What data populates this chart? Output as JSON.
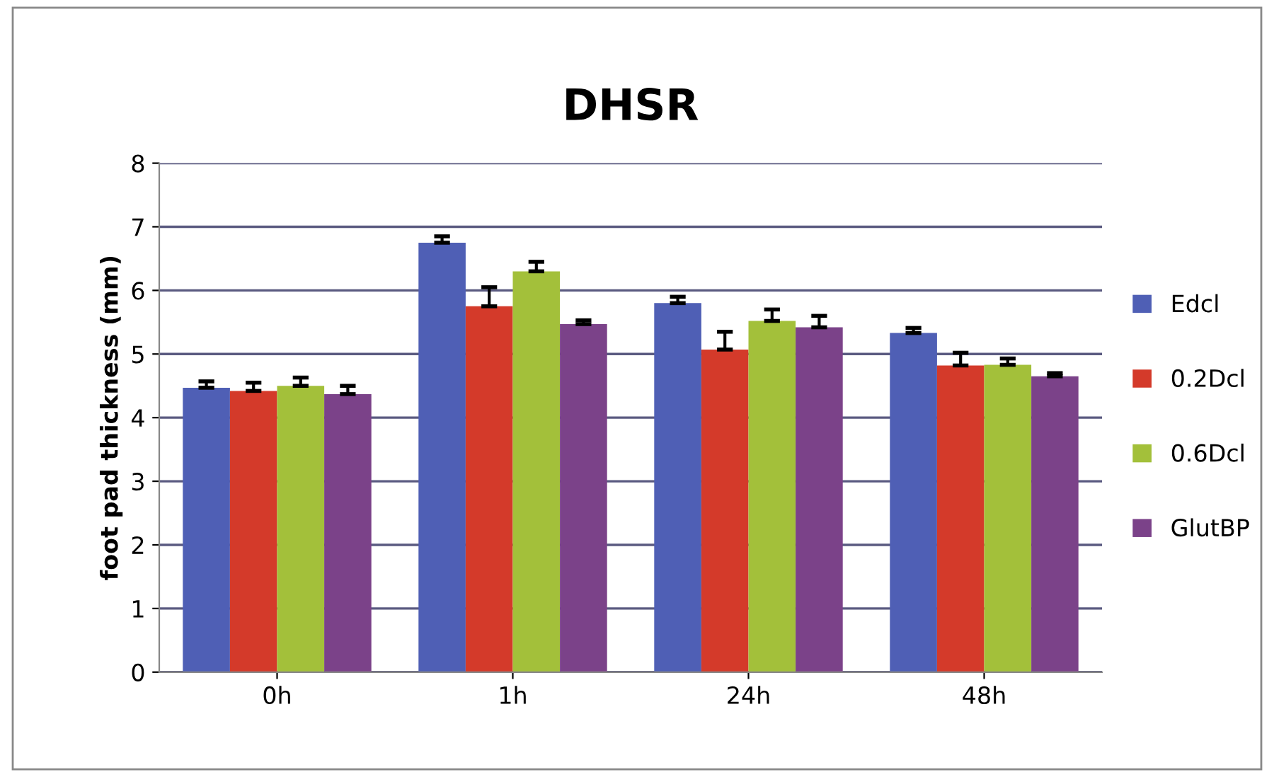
{
  "chart_data": {
    "type": "bar",
    "title": "DHSR",
    "ylabel": "foot pad thickness (mm)",
    "categories": [
      "0h",
      "1h",
      "24h",
      "48h"
    ],
    "series": [
      {
        "name": "Edcl",
        "color": "#4f5fb5",
        "values": [
          4.47,
          6.75,
          5.8,
          5.33
        ],
        "errors": [
          [
            4.47,
            4.57
          ],
          [
            6.75,
            6.85
          ],
          [
            5.8,
            5.9
          ],
          [
            5.33,
            5.41
          ]
        ]
      },
      {
        "name": "0.2Dcl",
        "color": "#d43a2a",
        "values": [
          4.42,
          5.75,
          5.07,
          4.82
        ],
        "errors": [
          [
            4.42,
            4.55
          ],
          [
            5.75,
            6.05
          ],
          [
            5.07,
            5.35
          ],
          [
            4.82,
            5.02
          ]
        ]
      },
      {
        "name": "0.6Dcl",
        "color": "#a3c03a",
        "values": [
          4.5,
          6.3,
          5.52,
          4.83
        ],
        "errors": [
          [
            4.5,
            4.63
          ],
          [
            6.3,
            6.45
          ],
          [
            5.52,
            5.7
          ],
          [
            4.83,
            4.93
          ]
        ]
      },
      {
        "name": "GlutBP",
        "color": "#7b4289",
        "values": [
          4.37,
          5.47,
          5.42,
          4.65
        ],
        "errors": [
          [
            4.37,
            4.5
          ],
          [
            5.47,
            5.53
          ],
          [
            5.42,
            5.6
          ],
          [
            4.65,
            4.7
          ]
        ]
      }
    ],
    "ylim": [
      0,
      8
    ],
    "yticks": [
      0,
      1,
      2,
      3,
      4,
      5,
      6,
      7,
      8
    ],
    "grid": "y",
    "legend": "right"
  }
}
